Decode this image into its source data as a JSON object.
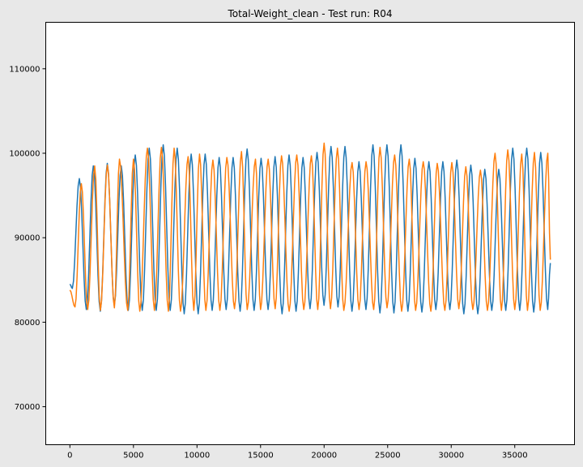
{
  "chart_data": {
    "type": "line",
    "title": "Total-Weight_clean - Test run: R04",
    "xlabel": "",
    "ylabel": "",
    "xlim": [
      -1900,
      39700
    ],
    "ylim": [
      65500,
      115500
    ],
    "x_ticks": [
      0,
      5000,
      10000,
      15000,
      20000,
      25000,
      30000,
      35000
    ],
    "x_tick_labels": [
      "0",
      "5000",
      "10000",
      "15000",
      "20000",
      "25000",
      "30000",
      "35000"
    ],
    "y_ticks": [
      70000,
      80000,
      90000,
      100000,
      110000
    ],
    "y_tick_labels": [
      "70000",
      "80000",
      "90000",
      "100000",
      "110000"
    ],
    "grid": false,
    "series": [
      {
        "color": "#1f77b4",
        "cycle_period": 1100,
        "x": [
          0,
          25,
          400,
          900,
          1350,
          1600,
          1950,
          2350,
          3200,
          3700,
          3850,
          4150,
          4500,
          5050,
          5300,
          5500,
          5750,
          6000,
          6300,
          6950,
          7100,
          7500,
          8300,
          9200,
          10100,
          11900,
          12150,
          12400,
          12800,
          13400,
          14300,
          14500,
          15200,
          15400,
          16050,
          16300,
          16700,
          16900,
          17150,
          18300,
          18450,
          18600,
          19400,
          19550,
          19650,
          20350,
          21050,
          21300,
          21450,
          22600,
          23300,
          23900,
          24900,
          25500,
          26200,
          26950,
          27900,
          28900,
          29600,
          30000,
          30400,
          31700,
          33200,
          35300,
          36000,
          36300,
          37000,
          37250,
          37600,
          37750,
          37800
        ],
        "y": [
          84500,
          84000,
          81700,
          97000,
          81500,
          81800,
          98500,
          81300,
          98800,
          82000,
          81300,
          98500,
          81400,
          99800,
          83000,
          97600,
          81400,
          83000,
          100600,
          81400,
          101000,
          81400,
          100600,
          81000,
          99900,
          81400,
          84200,
          81500,
          99500,
          81300,
          100500,
          81400,
          99400,
          81500,
          99600,
          81400,
          99800,
          81000,
          81300,
          99500,
          89000,
          81600,
          100100,
          81400,
          101300,
          82000,
          100800,
          81800,
          81300,
          99000,
          81500,
          101000,
          81100,
          101000,
          81300,
          99400,
          81200,
          99000,
          81500,
          99200,
          81000,
          98600,
          98100,
          81400,
          100600,
          81200,
          100100,
          81400,
          100200,
          81500,
          87000
        ]
      },
      {
        "color": "#ff7f0e",
        "x": [
          0,
          400,
          900,
          1400,
          1950,
          2400,
          2950,
          3500,
          3900,
          4550,
          5000,
          5500,
          6100,
          6650,
          7200,
          7750,
          8200,
          8700,
          9300,
          9750,
          10200,
          10700,
          11250,
          11800,
          12350,
          12950,
          13500,
          13950,
          14600,
          15000,
          15600,
          16150,
          16650,
          17250,
          17850,
          18400,
          19000,
          19500,
          20000,
          20500,
          21050,
          21550,
          22200,
          22750,
          23300,
          23900,
          24400,
          24950,
          25550,
          26100,
          26700,
          27200,
          27800,
          28400,
          28900,
          29500,
          30050,
          30600,
          31150,
          31700,
          32300,
          32850,
          33450,
          33950,
          34450,
          35000,
          35550,
          36000,
          36550,
          37000,
          37600,
          37800
        ],
        "y": [
          83800,
          81800,
          96400,
          81500,
          98500,
          81400,
          98600,
          81700,
          99300,
          81400,
          99300,
          81300,
          100600,
          81400,
          100700,
          81300,
          100600,
          81300,
          99600,
          81400,
          99900,
          81400,
          99200,
          81400,
          99500,
          81600,
          100200,
          81500,
          99300,
          81500,
          99300,
          81600,
          99700,
          81300,
          99800,
          81500,
          99700,
          81500,
          101200,
          81600,
          100600,
          81400,
          98900,
          81500,
          99000,
          81500,
          100700,
          81700,
          99800,
          81300,
          99300,
          81400,
          99000,
          81300,
          98800,
          81400,
          98900,
          81600,
          98400,
          81500,
          98000,
          81400,
          100000,
          81400,
          100400,
          81500,
          99900,
          81400,
          100100,
          81400,
          100000,
          87400
        ]
      }
    ]
  }
}
